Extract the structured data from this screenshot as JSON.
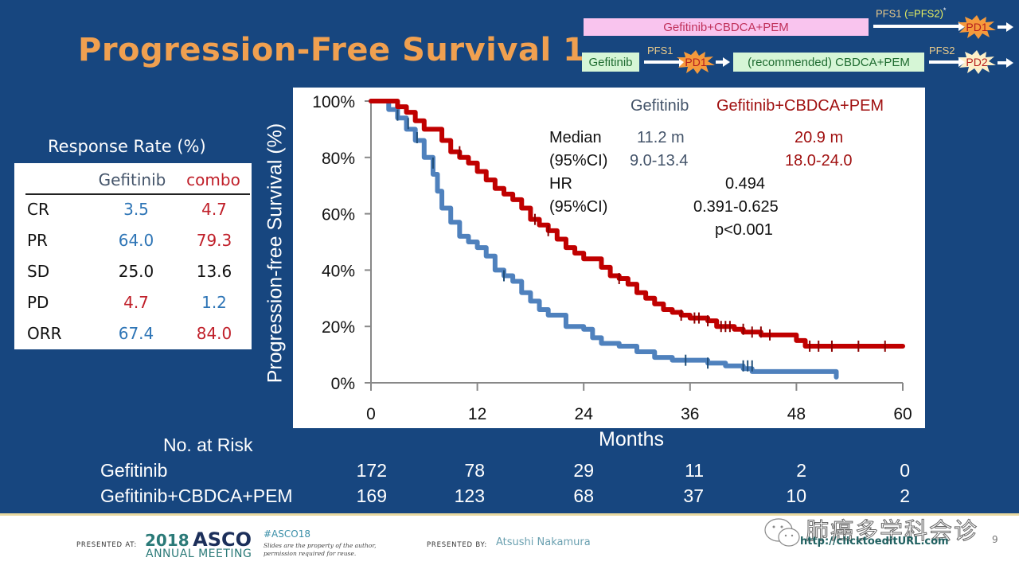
{
  "title": "Progression-Free Survival 1",
  "schema": {
    "combo_arm": "Gefitinib+CBDCA+PEM",
    "combo_pfs_label": "PFS1",
    "combo_pfs_eq": "(=PFS2)",
    "combo_asterisk": "*",
    "combo_pd": "PD1",
    "gef_arm": "Gefitinib",
    "gef_pfs1_label": "PFS1",
    "gef_pd1": "PD1",
    "gef_second_line": "(recommended) CBDCA+PEM",
    "gef_pfs2_label": "PFS2",
    "gef_pd2": "PD2"
  },
  "response_rate": {
    "title": "Response Rate (%)",
    "headers": [
      "",
      "Gefitinib",
      "combo"
    ],
    "rows": [
      {
        "label": "CR",
        "gefitinib": "3.5",
        "combo": "4.7"
      },
      {
        "label": "PR",
        "gefitinib": "64.0",
        "combo": "79.3"
      },
      {
        "label": "SD",
        "gefitinib": "25.0",
        "combo": "13.6"
      },
      {
        "label": "PD",
        "gefitinib": "4.7",
        "combo": "1.2"
      },
      {
        "label": "ORR",
        "gefitinib": "67.4",
        "combo": "84.0"
      }
    ]
  },
  "stats": {
    "legend_gef": "Gefitinib",
    "legend_combo": "Gefitinib+CBDCA+PEM",
    "median_label": "Median",
    "median_gef": "11.2 m",
    "median_combo": "20.9 m",
    "ci_label": "(95%CI)",
    "ci_gef": "9.0-13.4",
    "ci_combo": "18.0-24.0",
    "hr_label": "HR",
    "hr_value": "0.494",
    "hr_ci_label": "(95%CI)",
    "hr_ci": "0.391-0.625",
    "p_value": "p<0.001"
  },
  "chart_data": {
    "type": "line",
    "title": "",
    "xlabel": "Months",
    "ylabel": "Progression-free Survival (%)",
    "xlim": [
      0,
      60
    ],
    "ylim": [
      0,
      100
    ],
    "xticks": [
      0,
      12,
      24,
      36,
      48,
      60
    ],
    "yticks": [
      0,
      20,
      40,
      60,
      80,
      100
    ],
    "ytick_labels": [
      "0%",
      "20%",
      "40%",
      "60%",
      "80%",
      "100%"
    ],
    "grid": false,
    "step": true,
    "series": [
      {
        "name": "Gefitinib",
        "color": "#4f81bd",
        "x": [
          0,
          1.5,
          2,
          3,
          4,
          5,
          6,
          7,
          7.5,
          8,
          9,
          10,
          11,
          12,
          13,
          14,
          15,
          16,
          17,
          18,
          19,
          20,
          22,
          24,
          25,
          26,
          28,
          30,
          32,
          34,
          36,
          38,
          40,
          42,
          43,
          52.5,
          52.5
        ],
        "y": [
          100,
          100,
          97,
          94,
          90,
          86,
          80,
          74,
          68,
          62,
          57,
          52,
          50,
          48,
          45,
          40,
          38,
          36,
          32,
          29,
          26,
          24,
          20,
          19,
          16,
          14,
          13,
          11,
          9,
          8,
          8,
          7,
          6,
          5,
          4,
          4,
          2
        ],
        "censor_x": [
          3,
          4.2,
          5.2,
          7,
          15,
          35.5,
          38,
          42,
          42.5,
          43
        ],
        "censor_y": [
          95,
          92,
          87,
          78,
          38,
          8,
          7,
          6,
          6,
          6
        ]
      },
      {
        "name": "Gefitinib+CBDCA+PEM",
        "color": "#c00000",
        "x": [
          0,
          2,
          3,
          4,
          5,
          6,
          8,
          9,
          10,
          11,
          12,
          13,
          14,
          15,
          16,
          17,
          18,
          19,
          20,
          21,
          22,
          23,
          24,
          26,
          27,
          28,
          29,
          30,
          31,
          32,
          33,
          34,
          35,
          36,
          38,
          39,
          41,
          42,
          44,
          47,
          48,
          49,
          60
        ],
        "y": [
          100,
          100,
          98,
          96,
          93,
          90,
          86,
          82,
          80,
          78,
          75,
          72,
          69,
          67,
          65,
          62,
          58,
          56,
          54,
          51,
          48,
          46,
          44,
          41,
          38,
          37,
          35,
          32,
          30,
          28,
          26,
          25,
          24,
          23,
          22,
          20,
          19,
          18,
          17,
          17,
          15,
          13,
          13
        ],
        "censor_x": [
          10,
          18.5,
          20,
          28,
          35,
          36.5,
          37,
          38,
          39.5,
          40,
          40.5,
          42,
          43,
          44,
          45,
          49.5,
          50.5,
          52,
          55,
          58
        ],
        "censor_y": [
          82,
          58,
          54,
          37,
          24,
          23,
          23,
          22,
          20,
          20,
          20,
          19,
          18,
          18,
          17,
          13,
          13,
          13,
          13,
          13
        ]
      }
    ]
  },
  "risk_table": {
    "title": "No. at Risk",
    "rows": [
      {
        "label": "Gefitinib",
        "values": [
          "172",
          "78",
          "29",
          "11",
          "2",
          "0"
        ]
      },
      {
        "label": "Gefitinib+CBDCA+PEM",
        "values": [
          "169",
          "123",
          "68",
          "37",
          "10",
          "2"
        ]
      }
    ]
  },
  "footer": {
    "presented_at": "PRESENTED AT:",
    "asco_year": "2018",
    "asco_name": "ASCO",
    "asco_sub": "ANNUAL MEETING",
    "hashtag": "#ASCO18",
    "disclaimer_1": "Slides are the property of the author,",
    "disclaimer_2": "permission required for reuse.",
    "presented_by": "PRESENTED BY:",
    "presenter": "Atsushi Nakamura",
    "url": "http://clicktoeditURL.com",
    "watermark": "肺癌多学科会诊",
    "page_number": "9"
  }
}
